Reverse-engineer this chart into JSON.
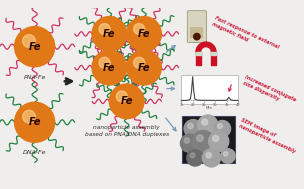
{
  "bg_color": "#f0eeec",
  "fe_color": "#e07818",
  "fe_dark": "#a04000",
  "fe_label_color": "#2a0800",
  "fe_font_size": 7,
  "pna_color": "#d03060",
  "dna_color": "#208040",
  "arrow_color": "#222222",
  "label_pna": "PNA-Fe",
  "label_dna": "DNA-Fe",
  "label_assembly": "nanoparticle assembly\nbased on PNA/DNA duplexes",
  "label_color": "#333333",
  "label_fontsize": 4.5,
  "annotation1": "Fast response to external\nmagnetic field",
  "annotation2": "Increased conjugate\nsize dispersity",
  "annotation3": "SEM image of\nnanoparticle assembly",
  "annot_color": "#cc2244",
  "annot_fontsize": 4.0,
  "chromatogram_x": [
    15,
    16,
    17,
    18,
    19,
    19.5,
    20,
    20.5,
    21,
    22,
    23,
    24,
    25,
    26,
    27,
    28,
    29,
    30,
    31,
    32,
    33,
    34,
    35,
    35.5,
    36,
    36.5,
    37,
    38,
    39,
    40
  ],
  "chromatogram_y": [
    0,
    0,
    0,
    0.1,
    0.5,
    3.5,
    9.0,
    3.5,
    0.5,
    0.15,
    0.08,
    0.06,
    0.05,
    0.04,
    0.03,
    0.03,
    0.02,
    0.02,
    0.02,
    0.02,
    0.02,
    0.02,
    0.1,
    0.6,
    1.2,
    0.6,
    0.15,
    0.04,
    0.01,
    0
  ],
  "chrom_color": "#444444",
  "magnet_color": "#cc1122",
  "blue_arrow_color": "#7799bb",
  "vial_color": "#d8d4c0",
  "vial_liquid": "#b8a870",
  "pellet_color": "#4a1800"
}
